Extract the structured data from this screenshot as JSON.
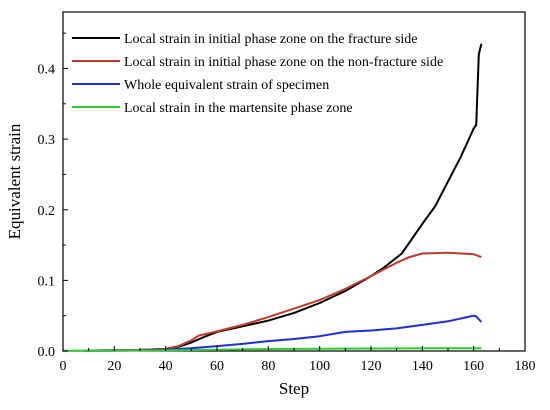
{
  "chart_data": {
    "type": "line",
    "title": "",
    "xlabel": "Step",
    "ylabel": "Equivalent strain",
    "xlim": [
      0,
      180
    ],
    "ylim": [
      0,
      0.48
    ],
    "xticks": [
      0,
      20,
      40,
      60,
      80,
      100,
      120,
      140,
      160,
      180
    ],
    "yticks": [
      0.0,
      0.1,
      0.2,
      0.3,
      0.4
    ],
    "ytick_labels": [
      "0.0",
      "0.1",
      "0.2",
      "0.3",
      "0.4"
    ],
    "grid": false,
    "legend_position": "top-left",
    "series": [
      {
        "name": "Local strain in initial phase zone on the fracture side",
        "color": "#000000",
        "points": [
          [
            8,
            0.0005
          ],
          [
            20,
            0.001
          ],
          [
            30,
            0.0015
          ],
          [
            40,
            0.003
          ],
          [
            45,
            0.006
          ],
          [
            50,
            0.012
          ],
          [
            55,
            0.02
          ],
          [
            60,
            0.027
          ],
          [
            70,
            0.035
          ],
          [
            80,
            0.043
          ],
          [
            90,
            0.054
          ],
          [
            100,
            0.068
          ],
          [
            110,
            0.085
          ],
          [
            120,
            0.106
          ],
          [
            125,
            0.118
          ],
          [
            132,
            0.138
          ],
          [
            140,
            0.18
          ],
          [
            145,
            0.205
          ],
          [
            150,
            0.24
          ],
          [
            155,
            0.275
          ],
          [
            160,
            0.315
          ],
          [
            161,
            0.32
          ],
          [
            162,
            0.42
          ],
          [
            163,
            0.435
          ]
        ]
      },
      {
        "name": "Local strain in initial phase zone on the non-fracture side",
        "color": "#c0392b",
        "points": [
          [
            8,
            0.0005
          ],
          [
            20,
            0.001
          ],
          [
            30,
            0.0015
          ],
          [
            40,
            0.003
          ],
          [
            45,
            0.007
          ],
          [
            50,
            0.015
          ],
          [
            53,
            0.022
          ],
          [
            58,
            0.026
          ],
          [
            70,
            0.037
          ],
          [
            80,
            0.048
          ],
          [
            90,
            0.06
          ],
          [
            100,
            0.072
          ],
          [
            110,
            0.088
          ],
          [
            120,
            0.106
          ],
          [
            130,
            0.125
          ],
          [
            135,
            0.133
          ],
          [
            140,
            0.138
          ],
          [
            150,
            0.139
          ],
          [
            160,
            0.137
          ],
          [
            163,
            0.133
          ]
        ]
      },
      {
        "name": "Whole equivalent strain of specimen",
        "color": "#1f2de0",
        "points": [
          [
            8,
            0.0003
          ],
          [
            20,
            0.0005
          ],
          [
            30,
            0.001
          ],
          [
            40,
            0.002
          ],
          [
            50,
            0.004
          ],
          [
            60,
            0.007
          ],
          [
            70,
            0.01
          ],
          [
            80,
            0.014
          ],
          [
            90,
            0.017
          ],
          [
            100,
            0.021
          ],
          [
            110,
            0.027
          ],
          [
            120,
            0.029
          ],
          [
            130,
            0.032
          ],
          [
            140,
            0.037
          ],
          [
            150,
            0.042
          ],
          [
            155,
            0.046
          ],
          [
            160,
            0.05
          ],
          [
            161,
            0.049
          ],
          [
            163,
            0.041
          ]
        ]
      },
      {
        "name": "Local strain in the martensite phase zone",
        "color": "#2ecc2e",
        "points": [
          [
            0,
            0.0003
          ],
          [
            20,
            0.0005
          ],
          [
            40,
            0.0008
          ],
          [
            60,
            0.0018
          ],
          [
            80,
            0.0028
          ],
          [
            100,
            0.0033
          ],
          [
            120,
            0.0036
          ],
          [
            140,
            0.0038
          ],
          [
            160,
            0.004
          ],
          [
            163,
            0.004
          ]
        ]
      }
    ]
  }
}
